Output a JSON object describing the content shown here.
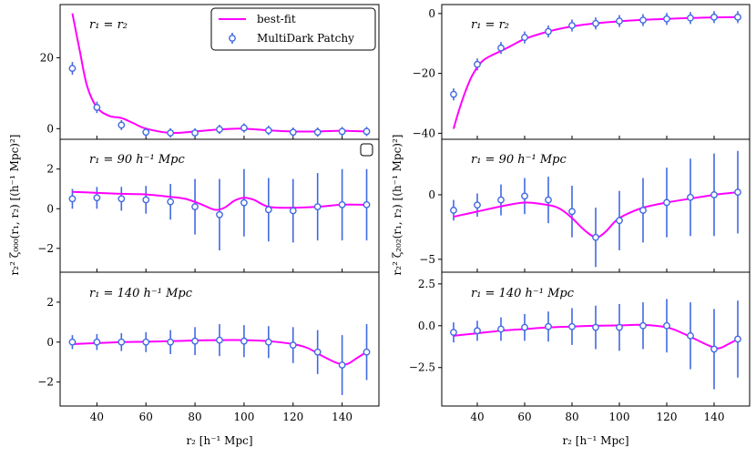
{
  "colors": {
    "fit": "#ff00ff",
    "data": "#4169e1",
    "axis": "#000000"
  },
  "chart_data": [
    {
      "type": "line+errorbar",
      "ylabel": "r₂² ζ₀₀₀(r₁, r₂)  [(h⁻¹ Mpc)²]",
      "xlabel": "r₂  [h⁻¹ Mpc]",
      "xlim": [
        25,
        155
      ],
      "xticks": [
        "40",
        "60",
        "80",
        "100",
        "120",
        "140"
      ],
      "legend": {
        "position": "top-right",
        "fit_label": "best-fit",
        "data_label": "MultiDark Patchy"
      },
      "panels": [
        {
          "annotation": "r₁ = r₂",
          "ylim": [
            -3,
            35
          ],
          "yticks": [
            {
              "v": 0,
              "label": "0"
            },
            {
              "v": 20,
              "label": "20"
            }
          ],
          "data": {
            "x": [
              30,
              40,
              50,
              60,
              70,
              80,
              90,
              100,
              110,
              120,
              130,
              140,
              150
            ],
            "y": [
              17,
              6,
              1,
              -1,
              -1.2,
              -1.2,
              -0.2,
              0.2,
              -0.5,
              -1,
              -1,
              -0.8,
              -0.8
            ],
            "err": [
              1.8,
              1.6,
              1.4,
              1.3,
              1.3,
              1.3,
              1.3,
              1.3,
              1.3,
              1.3,
              1.3,
              1.3,
              1.3
            ]
          },
          "fit": {
            "x": [
              30,
              33,
              36,
              40,
              45,
              50,
              55,
              60,
              70,
              80,
              90,
              100,
              110,
              120,
              130,
              140,
              150
            ],
            "y": [
              32.5,
              22,
              12,
              6,
              3.6,
              3.0,
              1.5,
              0,
              -1.2,
              -0.8,
              -0.2,
              0.0,
              -0.5,
              -0.8,
              -0.8,
              -0.6,
              -0.8
            ]
          }
        },
        {
          "annotation": "r₁ = 90 h⁻¹ Mpc",
          "ylim": [
            -3.2,
            3.5
          ],
          "yticks": [
            {
              "v": -2,
              "label": "−2"
            },
            {
              "v": 0,
              "label": "0"
            },
            {
              "v": 2,
              "label": "2"
            }
          ],
          "data": {
            "x": [
              30,
              40,
              50,
              60,
              70,
              80,
              90,
              100,
              110,
              120,
              130,
              140,
              150
            ],
            "y": [
              0.5,
              0.55,
              0.5,
              0.45,
              0.35,
              0.1,
              -0.3,
              0.3,
              -0.05,
              -0.1,
              0.1,
              0.2,
              0.2
            ],
            "err": [
              0.5,
              0.55,
              0.6,
              0.7,
              0.9,
              1.4,
              1.8,
              1.7,
              1.6,
              1.6,
              1.7,
              1.8,
              1.8
            ]
          },
          "fit": {
            "x": [
              30,
              40,
              50,
              60,
              70,
              76,
              82,
              88,
              92,
              96,
              100,
              104,
              110,
              120,
              130,
              140,
              150
            ],
            "y": [
              0.85,
              0.8,
              0.75,
              0.72,
              0.6,
              0.5,
              0.25,
              -0.05,
              0.05,
              0.4,
              0.55,
              0.45,
              0.1,
              0.05,
              0.1,
              0.2,
              0.2
            ]
          }
        },
        {
          "annotation": "r₁ = 140 h⁻¹ Mpc",
          "ylim": [
            -3.2,
            3.5
          ],
          "yticks": [
            {
              "v": -2,
              "label": "−2"
            },
            {
              "v": 0,
              "label": "0"
            },
            {
              "v": 2,
              "label": "2"
            }
          ],
          "data": {
            "x": [
              30,
              40,
              50,
              60,
              70,
              80,
              90,
              100,
              110,
              120,
              130,
              140,
              150
            ],
            "y": [
              0,
              0,
              0,
              0,
              0,
              0.05,
              0.1,
              0.05,
              0,
              -0.15,
              -0.5,
              -1.15,
              -0.5
            ],
            "err": [
              0.35,
              0.4,
              0.45,
              0.5,
              0.6,
              0.7,
              0.8,
              0.8,
              0.8,
              0.9,
              1.1,
              1.5,
              1.4
            ]
          },
          "fit": {
            "x": [
              30,
              40,
              50,
              60,
              70,
              80,
              90,
              100,
              110,
              120,
              126,
              132,
              138,
              142,
              146,
              150
            ],
            "y": [
              -0.1,
              -0.05,
              0,
              0.02,
              0.05,
              0.08,
              0.1,
              0.1,
              0.05,
              -0.1,
              -0.3,
              -0.7,
              -1.05,
              -1.1,
              -0.8,
              -0.5
            ]
          }
        }
      ]
    },
    {
      "type": "line+errorbar",
      "ylabel": "r₂² ζ₂₀₂(r₁, r₂)  [(h⁻¹ Mpc)²]",
      "xlabel": "r₂  [h⁻¹ Mpc]",
      "xlim": [
        25,
        155
      ],
      "xticks": [
        "40",
        "60",
        "80",
        "100",
        "120",
        "140"
      ],
      "panels": [
        {
          "annotation": "r₁ = r₂",
          "ylim": [
            -42,
            3
          ],
          "yticks": [
            {
              "v": 0,
              "label": "0"
            },
            {
              "v": -20,
              "label": "−20"
            },
            {
              "v": -40,
              "label": "−40"
            }
          ],
          "data": {
            "x": [
              30,
              40,
              50,
              60,
              70,
              80,
              90,
              100,
              110,
              120,
              130,
              140,
              150
            ],
            "y": [
              -27,
              -17,
              -11.5,
              -8,
              -6,
              -4,
              -3.3,
              -2.5,
              -2.2,
              -1.8,
              -1.5,
              -1.2,
              -1.2
            ],
            "err": [
              2,
              2,
              2,
              2,
              2,
              2,
              2,
              2,
              2,
              2,
              2,
              2,
              2
            ]
          },
          "fit": {
            "x": [
              30,
              32,
              35,
              38,
              42,
              46,
              50,
              55,
              60,
              70,
              80,
              90,
              100,
              110,
              120,
              130,
              140,
              150
            ],
            "y": [
              -38.5,
              -33,
              -26,
              -20.5,
              -16,
              -14,
              -12.5,
              -10.5,
              -8.5,
              -6,
              -4.3,
              -3.3,
              -2.6,
              -2.1,
              -1.8,
              -1.5,
              -1.3,
              -1.2
            ]
          }
        },
        {
          "annotation": "r₁ = 90 h⁻¹ Mpc",
          "ylim": [
            -6,
            4.3
          ],
          "yticks": [
            {
              "v": -5,
              "label": "−5"
            },
            {
              "v": 0,
              "label": "0"
            }
          ],
          "data": {
            "x": [
              30,
              40,
              50,
              60,
              70,
              80,
              90,
              100,
              110,
              120,
              130,
              140,
              150
            ],
            "y": [
              -1.2,
              -0.8,
              -0.4,
              -0.1,
              -0.4,
              -1.3,
              -3.3,
              -2.0,
              -1.2,
              -0.6,
              -0.2,
              0.0,
              0.2
            ],
            "err": [
              0.8,
              0.9,
              1.2,
              1.4,
              1.8,
              2.0,
              2.3,
              2.3,
              2.5,
              2.7,
              3.0,
              3.2,
              3.2
            ]
          },
          "fit": {
            "x": [
              30,
              40,
              50,
              60,
              70,
              75,
              80,
              85,
              90,
              94,
              98,
              102,
              110,
              120,
              130,
              140,
              150
            ],
            "y": [
              -1.7,
              -1.3,
              -0.9,
              -0.6,
              -0.8,
              -1.1,
              -1.8,
              -2.7,
              -3.3,
              -2.9,
              -2.1,
              -1.6,
              -1.0,
              -0.6,
              -0.3,
              0.0,
              0.2
            ]
          }
        },
        {
          "annotation": "r₁ = 140 h⁻¹ Mpc",
          "ylim": [
            -4.8,
            3.2
          ],
          "yticks": [
            {
              "v": 2.5,
              "label": "2.5"
            },
            {
              "v": 0,
              "label": "0.0"
            },
            {
              "v": -2.5,
              "label": "−2.5"
            }
          ],
          "data": {
            "x": [
              30,
              40,
              50,
              60,
              70,
              80,
              90,
              100,
              110,
              120,
              130,
              140,
              150
            ],
            "y": [
              -0.4,
              -0.3,
              -0.2,
              -0.1,
              -0.05,
              -0.05,
              -0.1,
              -0.1,
              0,
              0,
              -0.6,
              -1.4,
              -0.8
            ],
            "err": [
              0.6,
              0.6,
              0.7,
              0.8,
              0.9,
              1.1,
              1.3,
              1.4,
              1.4,
              1.6,
              2.0,
              2.4,
              2.3
            ]
          },
          "fit": {
            "x": [
              30,
              40,
              50,
              60,
              70,
              80,
              90,
              100,
              110,
              120,
              126,
              132,
              138,
              142,
              146,
              150
            ],
            "y": [
              -0.6,
              -0.45,
              -0.3,
              -0.2,
              -0.1,
              -0.05,
              0,
              0.02,
              0.05,
              -0.1,
              -0.4,
              -0.8,
              -1.2,
              -1.35,
              -1.1,
              -0.8
            ]
          }
        }
      ]
    }
  ]
}
